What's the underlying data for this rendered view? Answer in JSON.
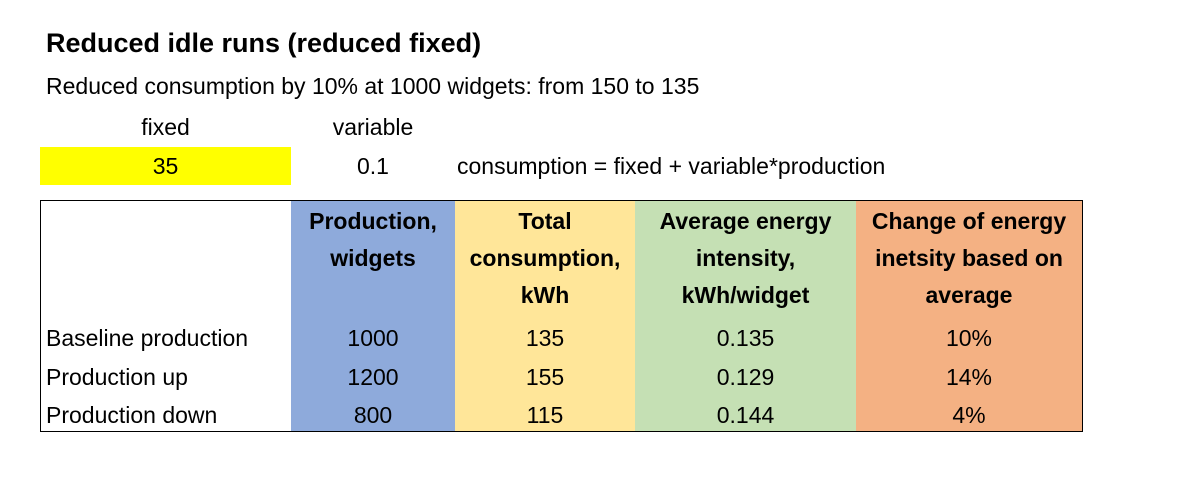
{
  "title": "Reduced idle runs (reduced fixed)",
  "subtitle": "Reduced consumption by 10% at 1000 widgets: from 150 to 135",
  "params": {
    "fixed_label": "fixed",
    "variable_label": "variable",
    "fixed_value": "35",
    "variable_value": "0.1",
    "formula": "consumption = fixed + variable*production",
    "highlight_color": "#ffff00"
  },
  "table": {
    "headers": [
      {
        "lines": [
          "Production,",
          "widgets"
        ],
        "color": "#8eaadb"
      },
      {
        "lines": [
          "Total",
          "consumption,",
          "kWh"
        ],
        "color": "#ffe699"
      },
      {
        "lines": [
          "Average energy",
          "intensity,",
          "kWh/widget"
        ],
        "color": "#c5e0b4"
      },
      {
        "lines": [
          "Change of energy",
          "inetsity based on",
          "average"
        ],
        "color": "#f4b183"
      }
    ],
    "rows": [
      {
        "label": "Baseline production",
        "production": "1000",
        "consumption": "135",
        "intensity": "0.135",
        "change": "10%"
      },
      {
        "label": "Production up",
        "production": "1200",
        "consumption": "155",
        "intensity": "0.129",
        "change": "14%"
      },
      {
        "label": "Production down",
        "production": "800",
        "consumption": "115",
        "intensity": "0.144",
        "change": "4%"
      }
    ]
  }
}
